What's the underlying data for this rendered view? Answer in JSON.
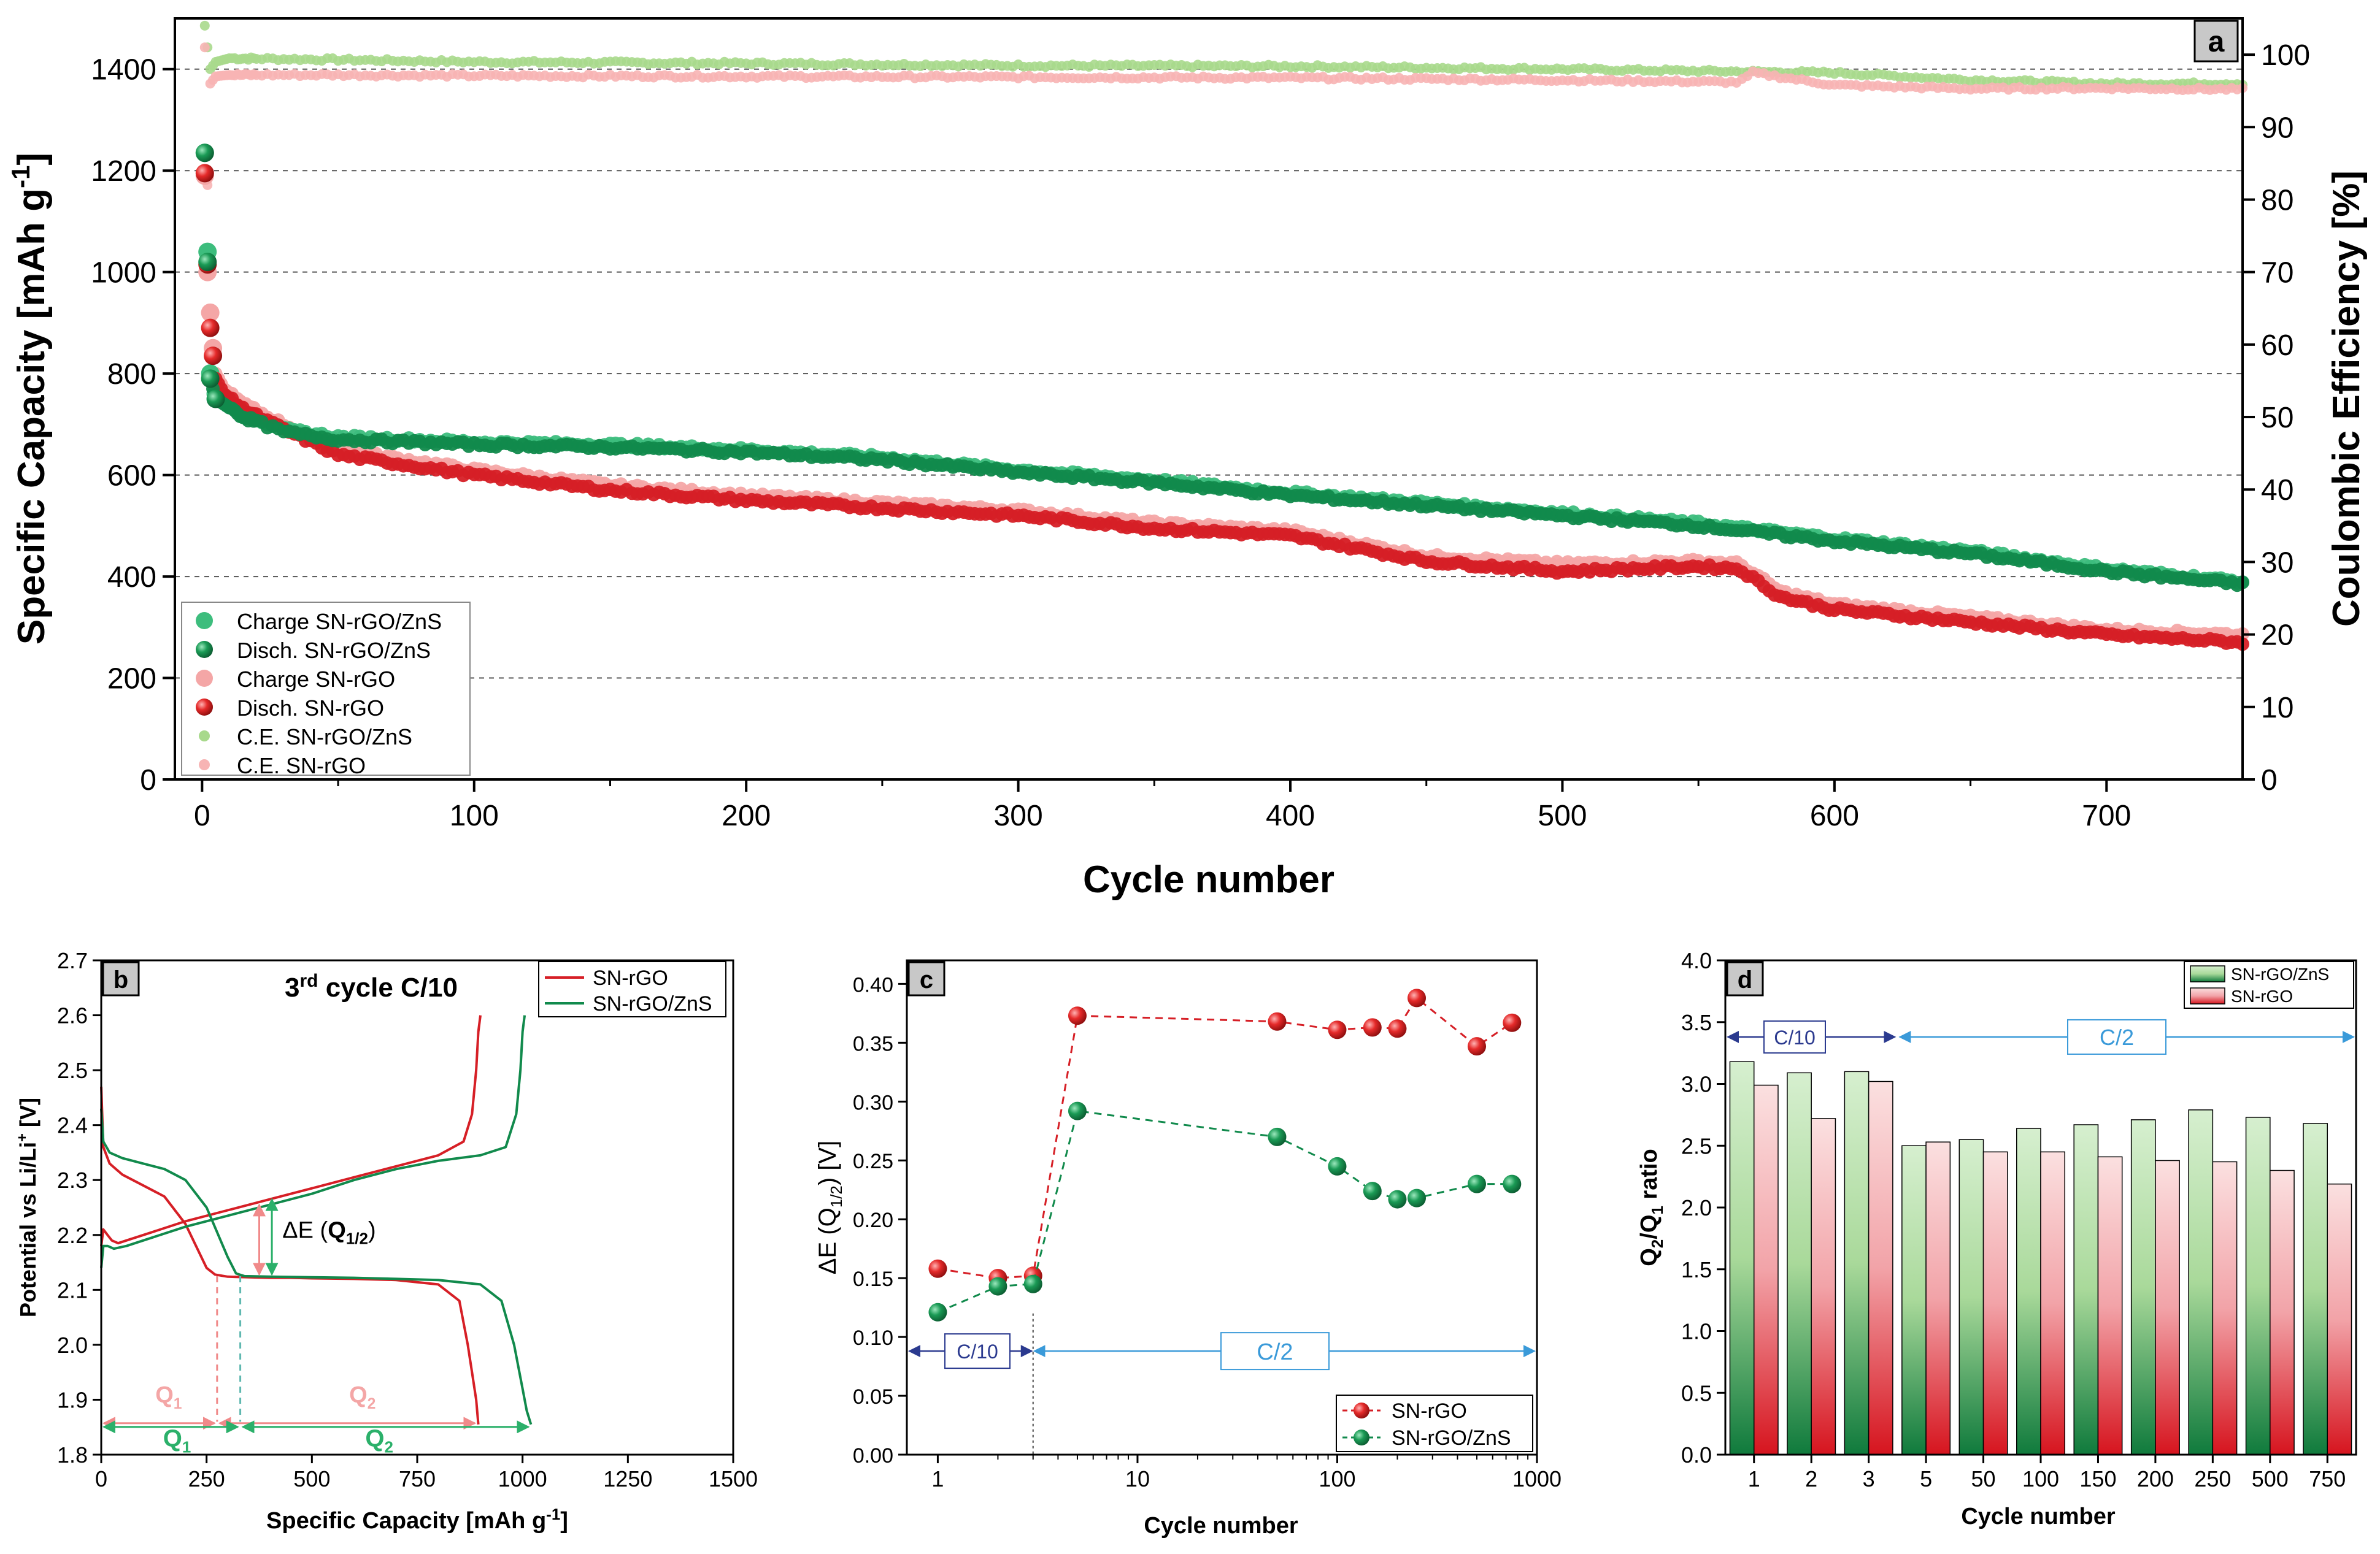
{
  "chart_data": [
    {
      "panel": "a",
      "type": "scatter",
      "panel_label": "a",
      "xlabel": "Cycle number",
      "ylabel_left": "Specific Capacity [mAh g",
      "ylabel_left_sup": "-1",
      "ylabel_left_end": "]",
      "ylabel_right": "Coulombic Efficiency [%]",
      "xlim": [
        -10,
        750
      ],
      "ylim_left": [
        0,
        1500
      ],
      "ylim_right": [
        0,
        105
      ],
      "x_ticks": [
        "0",
        "100",
        "200",
        "300",
        "400",
        "500",
        "600",
        "700"
      ],
      "x_tick_values": [
        0,
        100,
        200,
        300,
        400,
        500,
        600,
        700
      ],
      "y_left_ticks": [
        "0",
        "200",
        "400",
        "600",
        "800",
        "1000",
        "1200",
        "1400"
      ],
      "y_left_tick_values": [
        0,
        200,
        400,
        600,
        800,
        1000,
        1200,
        1400
      ],
      "y_right_ticks": [
        "0",
        "10",
        "20",
        "30",
        "40",
        "50",
        "60",
        "70",
        "80",
        "90",
        "100"
      ],
      "y_right_tick_values": [
        0,
        10,
        20,
        30,
        40,
        50,
        60,
        70,
        80,
        90,
        100
      ],
      "legend": [
        "Charge SN-rGO/ZnS",
        "Disch. SN-rGO/ZnS",
        "Charge SN-rGO",
        "Disch. SN-rGO",
        "C.E. SN-rGO/ZnS",
        "C.E. SN-rGO"
      ],
      "series": [
        {
          "name": "Charge SN-rGO/ZnS",
          "color": "#3dbd7d",
          "x": [
            1,
            2,
            3,
            5,
            8,
            15,
            30,
            50,
            100,
            150,
            200,
            250,
            300,
            350,
            400,
            450,
            500,
            550,
            600,
            650,
            700,
            750
          ],
          "values": [
            1235,
            1040,
            800,
            760,
            745,
            720,
            690,
            675,
            665,
            660,
            650,
            635,
            610,
            590,
            565,
            545,
            525,
            505,
            475,
            450,
            415,
            390
          ]
        },
        {
          "name": "Disch. SN-rGO/ZnS",
          "color": "#118a4c",
          "x": [
            1,
            2,
            3,
            5,
            8,
            15,
            30,
            50,
            100,
            150,
            200,
            250,
            300,
            350,
            400,
            450,
            500,
            550,
            600,
            650,
            700,
            750
          ],
          "values": [
            1235,
            1020,
            790,
            750,
            740,
            715,
            685,
            670,
            660,
            655,
            645,
            630,
            605,
            585,
            560,
            540,
            520,
            500,
            470,
            445,
            410,
            385
          ]
        },
        {
          "name": "Charge SN-rGO",
          "color": "#f4a6a6",
          "x": [
            1,
            2,
            3,
            4,
            5,
            8,
            15,
            30,
            50,
            100,
            150,
            200,
            250,
            300,
            350,
            400,
            450,
            500,
            550,
            565,
            580,
            600,
            650,
            700,
            750
          ],
          "values": [
            1190,
            1000,
            920,
            850,
            800,
            770,
            740,
            700,
            650,
            610,
            580,
            560,
            545,
            530,
            505,
            490,
            440,
            425,
            430,
            425,
            370,
            345,
            320,
            295,
            285
          ]
        },
        {
          "name": "Disch. SN-rGO",
          "color": "#d61f26",
          "x": [
            1,
            2,
            3,
            4,
            5,
            8,
            15,
            30,
            50,
            100,
            150,
            200,
            250,
            300,
            350,
            400,
            450,
            500,
            550,
            565,
            580,
            600,
            650,
            700,
            750
          ],
          "values": [
            1195,
            1015,
            890,
            835,
            790,
            760,
            730,
            690,
            640,
            600,
            570,
            550,
            535,
            520,
            495,
            480,
            430,
            410,
            420,
            415,
            360,
            335,
            310,
            285,
            270
          ]
        },
        {
          "name": "C.E. SN-rGO/ZnS",
          "color": "#a8d98c",
          "axis": "right",
          "x": [
            1,
            3,
            5,
            10,
            50,
            100,
            200,
            300,
            400,
            500,
            600,
            650,
            700,
            750
          ],
          "values": [
            104,
            98,
            99,
            99.5,
            99.3,
            99,
            98.8,
            98.5,
            98.4,
            98,
            97.5,
            96.5,
            96,
            96
          ]
        },
        {
          "name": "C.E. SN-rGO",
          "color": "#f7b4b4",
          "axis": "right",
          "x": [
            1,
            2,
            3,
            5,
            10,
            50,
            100,
            200,
            300,
            400,
            500,
            565,
            570,
            600,
            650,
            700,
            750
          ],
          "values": [
            101,
            82,
            96,
            97,
            97.2,
            97.2,
            97.1,
            97,
            96.9,
            96.8,
            96.5,
            96.2,
            97.5,
            95.8,
            95.3,
            95.4,
            95.2
          ]
        }
      ]
    },
    {
      "panel": "b",
      "type": "line",
      "panel_label": "b",
      "title": "cycle C/10",
      "title_number": "3",
      "title_sup": "rd",
      "xlabel": "Specific Capacity [mAh g",
      "xlabel_sup": "-1",
      "xlabel_end": "]",
      "ylabel": "Potential vs Li/Li",
      "ylabel_sup": "+",
      "ylabel_end": " [V]",
      "xlim": [
        0,
        1500
      ],
      "ylim": [
        1.8,
        2.7
      ],
      "x_ticks": [
        "0",
        "250",
        "500",
        "750",
        "1000",
        "1250",
        "1500"
      ],
      "x_tick_values": [
        0,
        250,
        500,
        750,
        1000,
        1250,
        1500
      ],
      "y_ticks": [
        "1.8",
        "1.9",
        "2.0",
        "2.1",
        "2.2",
        "2.3",
        "2.4",
        "2.5",
        "2.6",
        "2.7"
      ],
      "y_tick_values": [
        1.8,
        1.9,
        2.0,
        2.1,
        2.2,
        2.3,
        2.4,
        2.5,
        2.6,
        2.7
      ],
      "legend": [
        "SN-rGO",
        "SN-rGO/ZnS"
      ],
      "annotation_delta": "ΔE (",
      "annotation_q": "Q",
      "annotation_sub": "1/2",
      "annotation_end": ")",
      "q1_label": "Q",
      "q1_sub": "1",
      "q2_label": "Q",
      "q2_sub": "2",
      "series": [
        {
          "name": "SN-rGO",
          "color": "#d61f26",
          "segments": [
            {
              "x": [
                0,
                5,
                20,
                50,
                100,
                150,
                200,
                225,
                250,
                270,
                300,
                350,
                400,
                450,
                500,
                600,
                700,
                800,
                850,
                870,
                880,
                890,
                895
              ],
              "y": [
                2.47,
                2.36,
                2.33,
                2.31,
                2.29,
                2.27,
                2.22,
                2.18,
                2.14,
                2.128,
                2.124,
                2.123,
                2.122,
                2.122,
                2.121,
                2.12,
                2.118,
                2.11,
                2.08,
                2.0,
                1.95,
                1.9,
                1.855
              ]
            },
            {
              "x": [
                0,
                5,
                15,
                25,
                40,
                60,
                100,
                200,
                300,
                400,
                500,
                600,
                700,
                800,
                860,
                880,
                890,
                895,
                900
              ],
              "y": [
                2.18,
                2.21,
                2.2,
                2.19,
                2.185,
                2.19,
                2.2,
                2.225,
                2.245,
                2.265,
                2.285,
                2.305,
                2.325,
                2.345,
                2.37,
                2.42,
                2.5,
                2.57,
                2.6
              ]
            }
          ]
        },
        {
          "name": "SN-rGO/ZnS",
          "color": "#118a4c",
          "segments": [
            {
              "x": [
                0,
                5,
                20,
                50,
                100,
                150,
                200,
                250,
                300,
                320,
                340,
                400,
                500,
                600,
                700,
                800,
                900,
                950,
                980,
                1000,
                1010,
                1020
              ],
              "y": [
                2.43,
                2.37,
                2.35,
                2.34,
                2.33,
                2.32,
                2.3,
                2.25,
                2.16,
                2.13,
                2.125,
                2.124,
                2.123,
                2.122,
                2.12,
                2.118,
                2.11,
                2.08,
                2.0,
                1.92,
                1.88,
                1.855
              ]
            },
            {
              "x": [
                0,
                5,
                15,
                30,
                60,
                100,
                200,
                300,
                400,
                500,
                600,
                700,
                800,
                900,
                960,
                985,
                995,
                1000,
                1005
              ],
              "y": [
                2.14,
                2.18,
                2.18,
                2.175,
                2.18,
                2.19,
                2.215,
                2.235,
                2.255,
                2.275,
                2.3,
                2.32,
                2.335,
                2.345,
                2.36,
                2.42,
                2.5,
                2.57,
                2.6
              ]
            }
          ]
        }
      ]
    },
    {
      "panel": "c",
      "type": "scatter",
      "panel_label": "c",
      "xscale": "log",
      "xlabel": "Cycle number",
      "ylabel": "ΔE (Q",
      "ylabel_sub": "1/2",
      "ylabel_end": ") [V]",
      "xlim": [
        0.7,
        1000
      ],
      "ylim": [
        0,
        0.42
      ],
      "x_ticks": [
        "1",
        "10",
        "100",
        "1000"
      ],
      "x_tick_values": [
        1,
        10,
        100,
        1000
      ],
      "y_ticks": [
        "0.00",
        "0.05",
        "0.10",
        "0.15",
        "0.20",
        "0.25",
        "0.30",
        "0.35",
        "0.40"
      ],
      "y_tick_values": [
        0,
        0.05,
        0.1,
        0.15,
        0.2,
        0.25,
        0.3,
        0.35,
        0.4
      ],
      "rate_labels": [
        "C/10",
        "C/2"
      ],
      "legend": [
        "SN-rGO",
        "SN-rGO/ZnS"
      ],
      "series": [
        {
          "name": "SN-rGO",
          "color": "#d61f26",
          "x": [
            1,
            2,
            3,
            5,
            50,
            100,
            150,
            200,
            250,
            500,
            750
          ],
          "values": [
            0.158,
            0.15,
            0.152,
            0.373,
            0.368,
            0.361,
            0.363,
            0.362,
            0.388,
            0.347,
            0.367
          ]
        },
        {
          "name": "SN-rGO/ZnS",
          "color": "#118a4c",
          "x": [
            1,
            2,
            3,
            5,
            50,
            100,
            150,
            200,
            250,
            500,
            750
          ],
          "values": [
            0.121,
            0.143,
            0.145,
            0.292,
            0.27,
            0.245,
            0.224,
            0.217,
            0.218,
            0.23,
            0.23
          ]
        }
      ]
    },
    {
      "panel": "d",
      "type": "bar",
      "panel_label": "d",
      "xlabel": "Cycle number",
      "ylabel": "Q",
      "ylabel_sub1": "2",
      "ylabel_mid": "/Q",
      "ylabel_sub2": "1",
      "ylabel_end": " ratio",
      "ylim": [
        0,
        4.0
      ],
      "y_ticks": [
        "0.0",
        "0.5",
        "1.0",
        "1.5",
        "2.0",
        "2.5",
        "3.0",
        "3.5",
        "4.0"
      ],
      "y_tick_values": [
        0,
        0.5,
        1.0,
        1.5,
        2.0,
        2.5,
        3.0,
        3.5,
        4.0
      ],
      "categories": [
        "1",
        "2",
        "3",
        "5",
        "50",
        "100",
        "150",
        "200",
        "250",
        "500",
        "750"
      ],
      "rate_labels": [
        "C/10",
        "C/2"
      ],
      "legend": [
        "SN-rGO/ZnS",
        "SN-rGO"
      ],
      "series": [
        {
          "name": "SN-rGO/ZnS",
          "color": "#1e9b50",
          "values": [
            3.18,
            3.09,
            3.1,
            2.5,
            2.55,
            2.64,
            2.67,
            2.71,
            2.79,
            2.73,
            2.68
          ]
        },
        {
          "name": "SN-rGO",
          "color": "#d61f26",
          "values": [
            2.99,
            2.72,
            3.02,
            2.53,
            2.45,
            2.45,
            2.41,
            2.38,
            2.37,
            2.3,
            2.19
          ]
        }
      ]
    }
  ]
}
